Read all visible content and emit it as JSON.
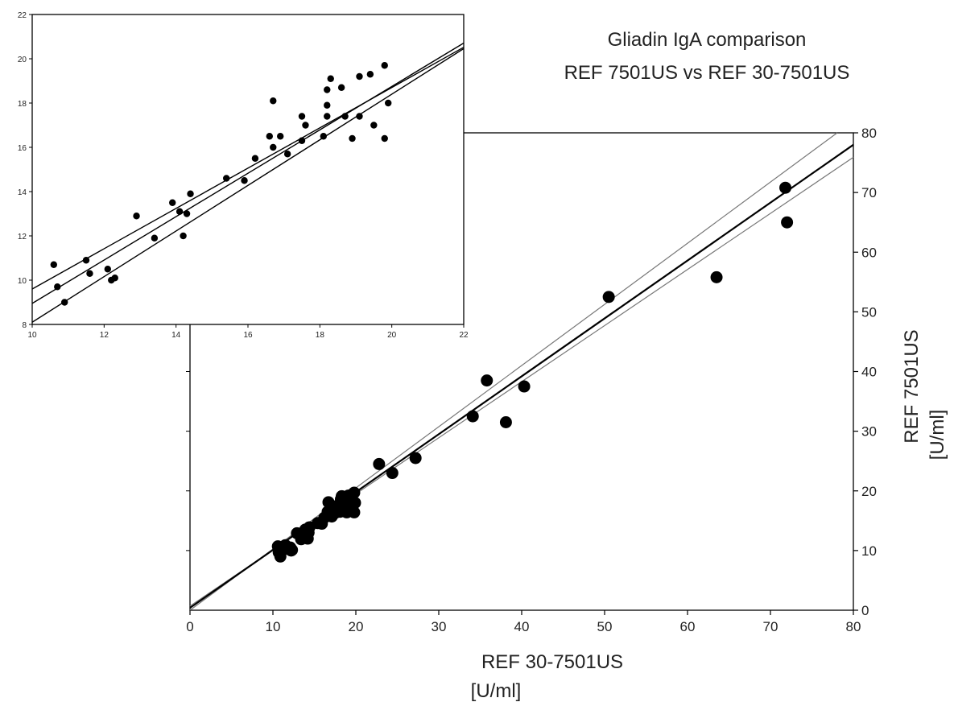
{
  "chart_data": [
    {
      "id": "main",
      "type": "scatter",
      "title_lines": [
        "Gliadin IgA comparison",
        "REF 7501US vs REF 30-7501US"
      ],
      "xlabel_lines": [
        "REF 30-7501US",
        "[U/ml]"
      ],
      "ylabel_lines": [
        "REF 7501US",
        "[U/ml]"
      ],
      "xlim": [
        0,
        80
      ],
      "ylim": [
        0,
        80
      ],
      "x_ticks": [
        0,
        10,
        20,
        30,
        40,
        50,
        60,
        70,
        80
      ],
      "y_ticks": [
        0,
        10,
        20,
        30,
        40,
        50,
        60,
        70,
        80
      ],
      "y_axis_side": "right",
      "grid": false,
      "points": [
        {
          "x": 10.6,
          "y": 10.7
        },
        {
          "x": 10.7,
          "y": 9.7
        },
        {
          "x": 10.9,
          "y": 9.0
        },
        {
          "x": 11.5,
          "y": 10.9
        },
        {
          "x": 11.6,
          "y": 10.3
        },
        {
          "x": 12.1,
          "y": 10.5
        },
        {
          "x": 12.2,
          "y": 10.0
        },
        {
          "x": 12.3,
          "y": 10.1
        },
        {
          "x": 12.9,
          "y": 12.9
        },
        {
          "x": 13.4,
          "y": 11.9
        },
        {
          "x": 13.9,
          "y": 13.5
        },
        {
          "x": 14.1,
          "y": 13.1
        },
        {
          "x": 14.2,
          "y": 12.0
        },
        {
          "x": 14.3,
          "y": 13.0
        },
        {
          "x": 14.4,
          "y": 13.9
        },
        {
          "x": 15.4,
          "y": 14.6
        },
        {
          "x": 15.9,
          "y": 14.5
        },
        {
          "x": 16.2,
          "y": 15.5
        },
        {
          "x": 16.6,
          "y": 16.5
        },
        {
          "x": 16.7,
          "y": 16.0
        },
        {
          "x": 16.7,
          "y": 18.1
        },
        {
          "x": 16.9,
          "y": 16.5
        },
        {
          "x": 17.1,
          "y": 15.7
        },
        {
          "x": 17.5,
          "y": 16.3
        },
        {
          "x": 17.5,
          "y": 17.4
        },
        {
          "x": 17.6,
          "y": 17.0
        },
        {
          "x": 18.1,
          "y": 16.5
        },
        {
          "x": 18.2,
          "y": 17.4
        },
        {
          "x": 18.2,
          "y": 17.9
        },
        {
          "x": 18.2,
          "y": 18.6
        },
        {
          "x": 18.3,
          "y": 19.1
        },
        {
          "x": 18.6,
          "y": 18.7
        },
        {
          "x": 18.7,
          "y": 17.4
        },
        {
          "x": 18.9,
          "y": 16.4
        },
        {
          "x": 19.1,
          "y": 19.2
        },
        {
          "x": 19.1,
          "y": 17.4
        },
        {
          "x": 19.4,
          "y": 19.3
        },
        {
          "x": 19.5,
          "y": 17.0
        },
        {
          "x": 19.8,
          "y": 19.7
        },
        {
          "x": 19.8,
          "y": 16.4
        },
        {
          "x": 19.9,
          "y": 18.0
        },
        {
          "x": 22.8,
          "y": 24.5
        },
        {
          "x": 24.4,
          "y": 23.0
        },
        {
          "x": 27.2,
          "y": 25.5
        },
        {
          "x": 34.1,
          "y": 32.5
        },
        {
          "x": 35.8,
          "y": 38.5
        },
        {
          "x": 38.1,
          "y": 31.5
        },
        {
          "x": 40.3,
          "y": 37.5
        },
        {
          "x": 50.5,
          "y": 52.5
        },
        {
          "x": 63.5,
          "y": 55.8
        },
        {
          "x": 71.8,
          "y": 70.8
        },
        {
          "x": 72.0,
          "y": 65.0
        }
      ],
      "regression": {
        "slope": 0.97,
        "intercept": 0.4
      },
      "ci_lines": [
        {
          "slope": 1.025,
          "intercept": 0.0
        },
        {
          "slope": 0.94,
          "intercept": 0.7
        }
      ]
    },
    {
      "id": "inset",
      "type": "scatter",
      "xlim": [
        10,
        22
      ],
      "ylim": [
        8,
        22
      ],
      "x_ticks": [
        10,
        12,
        14,
        16,
        18,
        20,
        22
      ],
      "y_ticks": [
        8,
        10,
        12,
        14,
        16,
        18,
        20,
        22
      ],
      "grid": false,
      "regression": {
        "slope": 0.98,
        "intercept": -0.85
      },
      "ci_lines": [
        {
          "slope": 0.91,
          "intercept": 0.5
        },
        {
          "slope": 1.03,
          "intercept": -2.2
        }
      ]
    }
  ]
}
